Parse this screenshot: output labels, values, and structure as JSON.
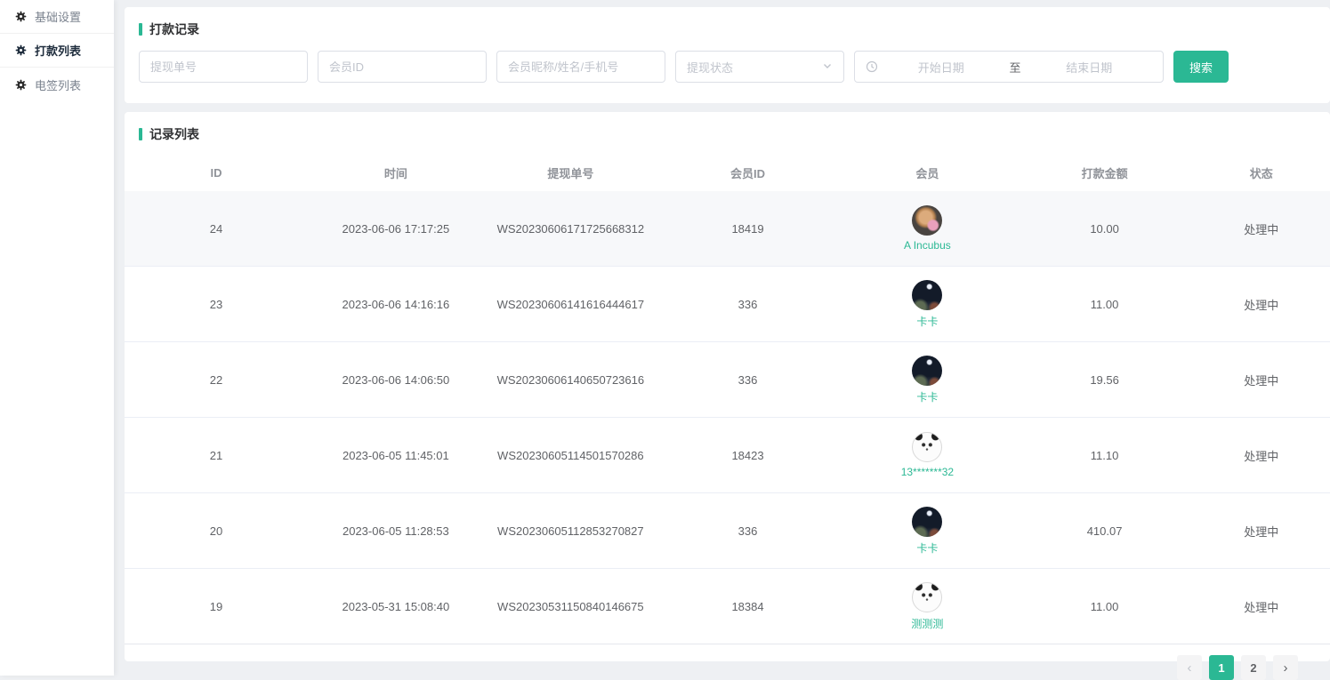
{
  "accent_color": "#2bb894",
  "sidebar": {
    "items": [
      {
        "label": "基础设置",
        "active": false
      },
      {
        "label": "打款列表",
        "active": true
      },
      {
        "label": "电签列表",
        "active": false
      }
    ]
  },
  "filter": {
    "title": "打款记录",
    "order_placeholder": "提现单号",
    "member_id_placeholder": "会员ID",
    "member_info_placeholder": "会员昵称/姓名/手机号",
    "status_placeholder": "提现状态",
    "date_start_placeholder": "开始日期",
    "date_separator": "至",
    "date_end_placeholder": "结束日期",
    "search_label": "搜索"
  },
  "list": {
    "title": "记录列表",
    "columns": [
      "ID",
      "时间",
      "提现单号",
      "会员ID",
      "会员",
      "打款金额",
      "状态"
    ],
    "rows": [
      {
        "id": "24",
        "time": "2023-06-06 17:17:25",
        "order_no": "WS20230606171725668312",
        "member_id": "18419",
        "member_name": "A Incubus",
        "avatar": "dog",
        "amount": "10.00",
        "status": "处理中",
        "highlighted": true
      },
      {
        "id": "23",
        "time": "2023-06-06 14:16:16",
        "order_no": "WS20230606141616444617",
        "member_id": "336",
        "member_name": "卡卡",
        "avatar": "night",
        "amount": "11.00",
        "status": "处理中",
        "highlighted": false
      },
      {
        "id": "22",
        "time": "2023-06-06 14:06:50",
        "order_no": "WS20230606140650723616",
        "member_id": "336",
        "member_name": "卡卡",
        "avatar": "night",
        "amount": "19.56",
        "status": "处理中",
        "highlighted": false
      },
      {
        "id": "21",
        "time": "2023-06-05 11:45:01",
        "order_no": "WS20230605114501570286",
        "member_id": "18423",
        "member_name": "13*******32",
        "avatar": "panda",
        "amount": "11.10",
        "status": "处理中",
        "highlighted": false
      },
      {
        "id": "20",
        "time": "2023-06-05 11:28:53",
        "order_no": "WS20230605112853270827",
        "member_id": "336",
        "member_name": "卡卡",
        "avatar": "night",
        "amount": "410.07",
        "status": "处理中",
        "highlighted": false
      },
      {
        "id": "19",
        "time": "2023-05-31 15:08:40",
        "order_no": "WS20230531150840146675",
        "member_id": "18384",
        "member_name": "测测测",
        "avatar": "panda",
        "amount": "11.00",
        "status": "处理中",
        "highlighted": false
      }
    ]
  },
  "pagination": {
    "prev_icon": "‹",
    "next_icon": "›",
    "pages": [
      {
        "label": "1",
        "active": true
      },
      {
        "label": "2",
        "active": false
      }
    ]
  }
}
